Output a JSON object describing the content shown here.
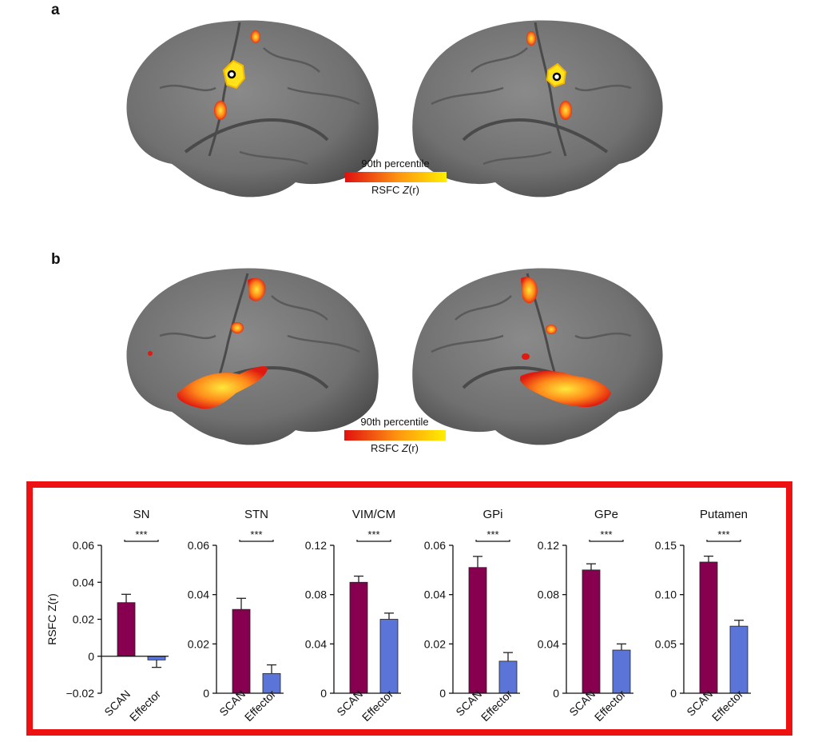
{
  "panels": {
    "a": "a",
    "b": "b"
  },
  "legend_a": {
    "top_label": "90th percentile",
    "bottom_label": "RSFC",
    "bottom_label_italic": "Z",
    "bottom_label_paren": "(r)"
  },
  "legend_b": {
    "top_label": "90th percentile",
    "bottom_label": "RSFC",
    "bottom_label_italic": "Z",
    "bottom_label_paren": "(r)"
  },
  "colors": {
    "scan": "#86004f",
    "effector": "#5b74d8",
    "frame": "#ee1111",
    "cortex": "#757575",
    "heat_low": "#e01010",
    "heat_high": "#ffee00"
  },
  "significance": "***",
  "chart_data": [
    {
      "type": "bar",
      "title": "SN",
      "ylabel": "RSFC Z(r)",
      "categories": [
        "SCAN",
        "Effector"
      ],
      "values": [
        0.029,
        -0.002
      ],
      "errors": [
        0.0045,
        0.004
      ],
      "ylim": [
        -0.02,
        0.06
      ],
      "yticks": [
        "−0.02",
        "0",
        "0.02",
        "0.04",
        "0.06"
      ],
      "ytick_values": [
        -0.02,
        0,
        0.02,
        0.04,
        0.06
      ]
    },
    {
      "type": "bar",
      "title": "STN",
      "ylabel": "",
      "categories": [
        "SCAN",
        "Effector"
      ],
      "values": [
        0.034,
        0.008
      ],
      "errors": [
        0.0045,
        0.0035
      ],
      "ylim": [
        0,
        0.06
      ],
      "yticks": [
        "0",
        "0.02",
        "0.04",
        "0.06"
      ],
      "ytick_values": [
        0,
        0.02,
        0.04,
        0.06
      ]
    },
    {
      "type": "bar",
      "title": "VIM/CM",
      "ylabel": "",
      "categories": [
        "SCAN",
        "Effector"
      ],
      "values": [
        0.09,
        0.06
      ],
      "errors": [
        0.005,
        0.005
      ],
      "ylim": [
        0,
        0.12
      ],
      "yticks": [
        "0",
        "0.04",
        "0.08",
        "0.12"
      ],
      "ytick_values": [
        0,
        0.04,
        0.08,
        0.12
      ]
    },
    {
      "type": "bar",
      "title": "GPi",
      "ylabel": "",
      "categories": [
        "SCAN",
        "Effector"
      ],
      "values": [
        0.051,
        0.013
      ],
      "errors": [
        0.0045,
        0.0035
      ],
      "ylim": [
        0,
        0.06
      ],
      "yticks": [
        "0",
        "0.02",
        "0.04",
        "0.06"
      ],
      "ytick_values": [
        0,
        0.02,
        0.04,
        0.06
      ]
    },
    {
      "type": "bar",
      "title": "GPe",
      "ylabel": "",
      "categories": [
        "SCAN",
        "Effector"
      ],
      "values": [
        0.1,
        0.035
      ],
      "errors": [
        0.005,
        0.005
      ],
      "ylim": [
        0,
        0.12
      ],
      "yticks": [
        "0",
        "0.04",
        "0.08",
        "0.12"
      ],
      "ytick_values": [
        0,
        0.04,
        0.08,
        0.12
      ]
    },
    {
      "type": "bar",
      "title": "Putamen",
      "ylabel": "",
      "categories": [
        "SCAN",
        "Effector"
      ],
      "values": [
        0.133,
        0.068
      ],
      "errors": [
        0.006,
        0.006
      ],
      "ylim": [
        0,
        0.15
      ],
      "yticks": [
        "0",
        "0.05",
        "0.10",
        "0.15"
      ],
      "ytick_values": [
        0,
        0.05,
        0.1,
        0.15
      ]
    }
  ]
}
